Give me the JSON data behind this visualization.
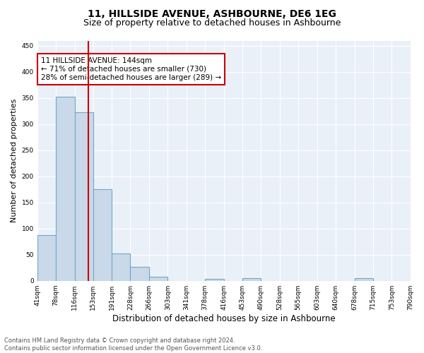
{
  "title": "11, HILLSIDE AVENUE, ASHBOURNE, DE6 1EG",
  "subtitle": "Size of property relative to detached houses in Ashbourne",
  "xlabel": "Distribution of detached houses by size in Ashbourne",
  "ylabel": "Number of detached properties",
  "bar_values": [
    88,
    353,
    323,
    175,
    53,
    27,
    8,
    0,
    0,
    4,
    0,
    5,
    0,
    0,
    0,
    0,
    0,
    5,
    0,
    0
  ],
  "bar_edges": [
    41,
    78,
    116,
    153,
    191,
    228,
    266,
    303,
    341,
    378,
    416,
    453,
    490,
    528,
    565,
    603,
    640,
    678,
    715,
    753,
    790
  ],
  "bar_color": "#c9d9ea",
  "bar_edgecolor": "#6fa8c8",
  "bar_linewidth": 0.8,
  "red_line_x": 144,
  "red_line_color": "#cc0000",
  "ylim": [
    0,
    460
  ],
  "annotation_text": "11 HILLSIDE AVENUE: 144sqm\n← 71% of detached houses are smaller (730)\n28% of semi-detached houses are larger (289) →",
  "annotation_fontsize": 7.5,
  "annotation_box_color": "white",
  "annotation_box_edgecolor": "#cc0000",
  "title_fontsize": 10,
  "subtitle_fontsize": 9,
  "xlabel_fontsize": 8.5,
  "ylabel_fontsize": 8,
  "tick_fontsize": 6.5,
  "footnote": "Contains HM Land Registry data © Crown copyright and database right 2024.\nContains public sector information licensed under the Open Government Licence v3.0.",
  "footnote_fontsize": 6,
  "background_color": "#eaf0f8",
  "grid_color": "white",
  "yticks": [
    0,
    50,
    100,
    150,
    200,
    250,
    300,
    350,
    400,
    450
  ]
}
